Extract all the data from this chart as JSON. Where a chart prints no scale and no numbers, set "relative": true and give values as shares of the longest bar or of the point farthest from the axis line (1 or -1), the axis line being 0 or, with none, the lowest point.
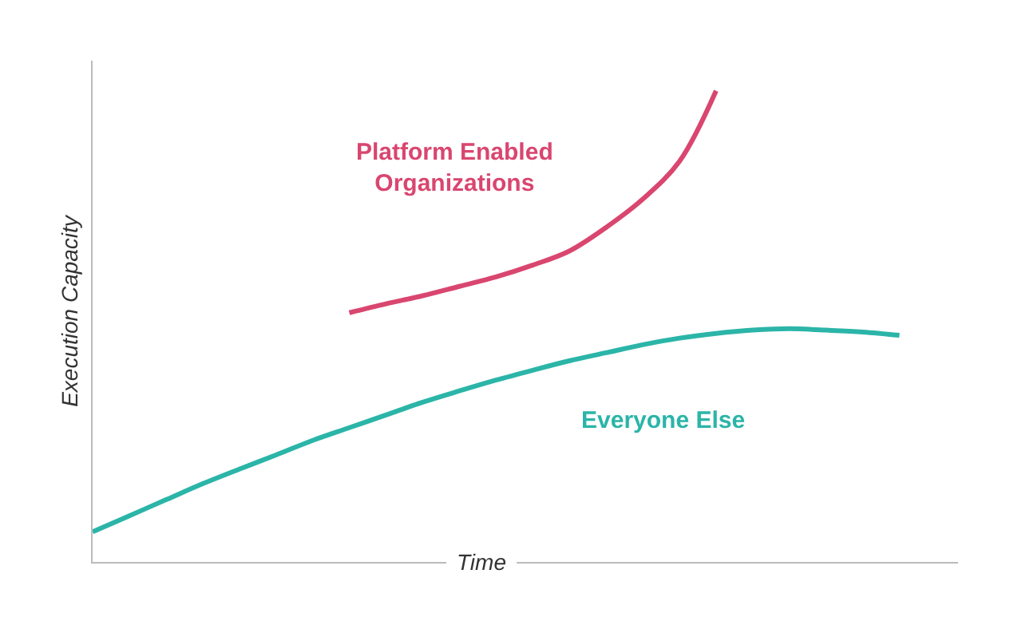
{
  "chart_data": {
    "type": "line",
    "relative": true,
    "xlabel": "Time",
    "ylabel": "Execution Capacity",
    "legend": false,
    "marker": "none",
    "line_style": "solid",
    "categories": [
      null,
      null,
      null,
      null,
      null,
      null,
      null,
      null,
      null,
      null,
      null,
      null,
      null,
      null,
      null,
      null,
      null,
      null,
      null,
      null,
      null,
      null,
      null
    ],
    "series": [
      {
        "name": "Platform Enabled Organizations",
        "color": "#d9466f",
        "values": [
          null,
          null,
          null,
          null,
          null,
          null,
          null,
          0.529,
          0.548,
          0.565,
          0.585,
          0.605,
          0.63,
          0.66,
          0.71,
          0.77,
          0.85,
          1,
          null,
          null,
          null,
          null,
          null
        ]
      },
      {
        "name": "Everyone Else",
        "color": "#2bb5a8",
        "values": [
          0.064,
          0.098,
          0.132,
          0.166,
          0.197,
          0.227,
          0.258,
          0.285,
          0.312,
          0.339,
          0.363,
          0.386,
          0.407,
          0.427,
          0.444,
          0.461,
          0.475,
          0.485,
          0.492,
          0.495,
          0.492,
          0.488,
          0.481
        ]
      }
    ]
  }
}
